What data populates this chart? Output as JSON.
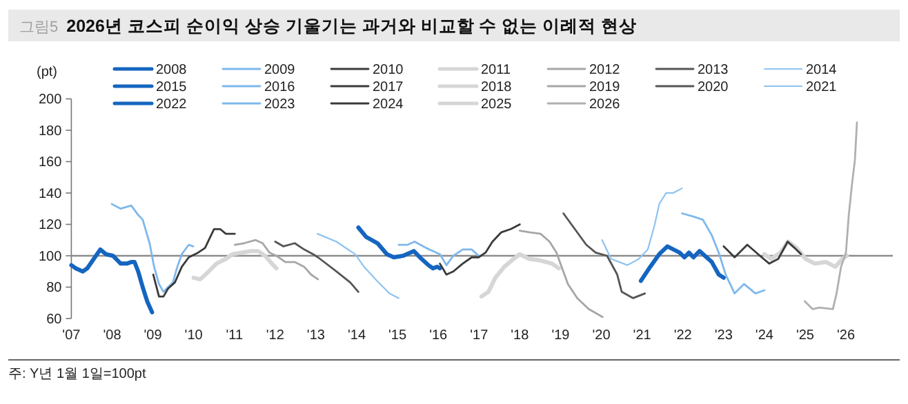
{
  "chart_data": {
    "type": "line",
    "title": "2026년 코스피 순이익 상승 기울기는 과거와 비교할 수 없는 이례적 현상",
    "ylabel": "(pt)",
    "annotations": [
      "그림5",
      "주: Y년 1월 1일=100pt"
    ],
    "xlim": [
      2007,
      2027.15
    ],
    "ylim": [
      60,
      200
    ],
    "xticks": [
      {
        "value": 2007,
        "label": "'07"
      },
      {
        "value": 2008,
        "label": "'08"
      },
      {
        "value": 2009,
        "label": "'09"
      },
      {
        "value": 2010,
        "label": "'10"
      },
      {
        "value": 2011,
        "label": "'11"
      },
      {
        "value": 2012,
        "label": "'12"
      },
      {
        "value": 2013,
        "label": "'13"
      },
      {
        "value": 2014,
        "label": "'14"
      },
      {
        "value": 2015,
        "label": "'15"
      },
      {
        "value": 2016,
        "label": "'16"
      },
      {
        "value": 2017,
        "label": "'17"
      },
      {
        "value": 2018,
        "label": "'18"
      },
      {
        "value": 2019,
        "label": "'19"
      },
      {
        "value": 2020,
        "label": "'20"
      },
      {
        "value": 2021,
        "label": "'21"
      },
      {
        "value": 2022,
        "label": "'22"
      },
      {
        "value": 2023,
        "label": "'23"
      },
      {
        "value": 2024,
        "label": "'24"
      },
      {
        "value": 2025,
        "label": "'25"
      },
      {
        "value": 2026,
        "label": "'26"
      }
    ],
    "yticks": [
      60,
      80,
      100,
      120,
      140,
      160,
      180,
      200
    ],
    "grid": false,
    "legend": "top",
    "line_style": "solid",
    "ref_lines": [
      {
        "axis": "y",
        "value": 100,
        "color": "#8c8c8c"
      }
    ],
    "series": [
      {
        "name": "2008",
        "color": "#1565c0",
        "x": [
          2007.0,
          2007.11,
          2007.28,
          2007.39,
          2007.71,
          2007.85,
          2008.02,
          2008.21,
          2008.36,
          2008.47,
          2008.55,
          2008.64,
          2008.75,
          2008.86,
          2008.98
        ],
        "values": [
          94,
          92,
          90,
          92,
          104,
          101,
          100,
          95,
          95,
          96,
          96,
          90,
          80,
          71,
          64
        ]
      },
      {
        "name": "2009",
        "color": "#7fb8ec",
        "x": [
          2007.99,
          2008.21,
          2008.47,
          2008.64,
          2008.75,
          2008.92,
          2009.03,
          2009.15,
          2009.26,
          2009.37,
          2009.49,
          2009.6,
          2009.71,
          2009.88,
          2009.99
        ],
        "values": [
          133,
          130,
          132,
          126,
          123,
          108,
          93,
          82,
          77,
          80,
          83,
          93,
          101,
          107,
          106
        ]
      },
      {
        "name": "2010",
        "color": "#3a3a3a",
        "x": [
          2009.01,
          2009.15,
          2009.26,
          2009.37,
          2009.54,
          2009.71,
          2009.88,
          2010.11,
          2010.28,
          2010.39,
          2010.5,
          2010.65,
          2010.79,
          2011.01
        ],
        "values": [
          88,
          74,
          74,
          79,
          83,
          93,
          99,
          102,
          105,
          111,
          117,
          117,
          114,
          114
        ]
      },
      {
        "name": "2011",
        "color": "#d6d6d6",
        "x": [
          2010.0,
          2010.16,
          2010.33,
          2010.56,
          2010.79,
          2010.95,
          2011.18,
          2011.41,
          2011.58,
          2011.75,
          2011.92,
          2012.03
        ],
        "values": [
          86,
          85,
          89,
          95,
          98,
          101,
          102,
          103,
          103,
          100,
          95,
          92
        ]
      },
      {
        "name": "2012",
        "color": "#a6a6a6",
        "x": [
          2011.01,
          2011.24,
          2011.52,
          2011.69,
          2011.86,
          2012.03,
          2012.25,
          2012.48,
          2012.71,
          2012.88,
          2013.05
        ],
        "values": [
          107,
          108,
          110,
          108,
          102,
          100,
          96,
          96,
          93,
          88,
          85
        ]
      },
      {
        "name": "2013",
        "color": "#555555",
        "x": [
          2012.0,
          2012.2,
          2012.48,
          2012.71,
          2012.93,
          2013.05,
          2013.5,
          2013.84,
          2014.04
        ],
        "values": [
          109,
          106,
          108,
          104,
          101,
          99,
          90,
          83,
          77
        ]
      },
      {
        "name": "2014",
        "color": "#8ec3f0",
        "x": [
          2013.04,
          2013.5,
          2013.96,
          2014.18,
          2014.46,
          2014.8,
          2015.03
        ],
        "values": [
          114,
          109,
          101,
          93,
          85,
          76,
          73
        ]
      },
      {
        "name": "2015",
        "color": "#1565c0",
        "x": [
          2014.04,
          2014.23,
          2014.51,
          2014.74,
          2014.91,
          2015.14,
          2015.4,
          2015.59,
          2015.76,
          2015.87,
          2015.98,
          2016.04
        ],
        "values": [
          118,
          112,
          108,
          101,
          99,
          100,
          103,
          98,
          94,
          92,
          93,
          92
        ]
      },
      {
        "name": "2016",
        "color": "#7fb8ec",
        "x": [
          2015.03,
          2015.25,
          2015.42,
          2015.7,
          2016.04,
          2016.2,
          2016.37,
          2016.6,
          2016.82,
          2016.99
        ],
        "values": [
          107,
          107,
          109,
          105,
          101,
          94,
          100,
          104,
          104,
          100
        ]
      },
      {
        "name": "2017",
        "color": "#3a3a3a",
        "x": [
          2016.04,
          2016.2,
          2016.37,
          2016.6,
          2016.82,
          2016.99,
          2017.16,
          2017.33,
          2017.55,
          2017.78,
          2018.0
        ],
        "values": [
          95,
          88,
          90,
          95,
          99,
          99,
          102,
          109,
          115,
          117,
          120
        ]
      },
      {
        "name": "2018",
        "color": "#d6d6d6",
        "x": [
          2017.06,
          2017.23,
          2017.4,
          2017.62,
          2017.85,
          2018.0,
          2018.23,
          2018.51,
          2018.79,
          2018.96
        ],
        "values": [
          74,
          77,
          86,
          93,
          98,
          101,
          98,
          97,
          95,
          92
        ]
      },
      {
        "name": "2019",
        "color": "#a6a6a6",
        "x": [
          2018.0,
          2018.23,
          2018.51,
          2018.73,
          2018.9,
          2019.04,
          2019.18,
          2019.41,
          2019.69,
          2020.03
        ],
        "values": [
          116,
          115,
          114,
          109,
          102,
          92,
          82,
          73,
          66,
          61
        ]
      },
      {
        "name": "2020",
        "color": "#555555",
        "x": [
          2019.07,
          2019.35,
          2019.63,
          2019.86,
          2020.14,
          2020.39,
          2020.5,
          2020.78,
          2021.07
        ],
        "values": [
          127,
          117,
          107,
          102,
          100,
          88,
          77,
          73,
          76
        ]
      },
      {
        "name": "2021",
        "color": "#8ec3f0",
        "x": [
          2020.02,
          2020.24,
          2020.64,
          2020.92,
          2021.14,
          2021.31,
          2021.42,
          2021.59,
          2021.76,
          2021.98
        ],
        "values": [
          110,
          98,
          94,
          98,
          104,
          120,
          133,
          140,
          140,
          143
        ]
      },
      {
        "name": "2022",
        "color": "#1565c0",
        "x": [
          2020.97,
          2021.2,
          2021.42,
          2021.62,
          2021.92,
          2022.04,
          2022.15,
          2022.26,
          2022.41,
          2022.54,
          2022.71,
          2022.88,
          2023.0
        ],
        "values": [
          84,
          93,
          101,
          106,
          102,
          99,
          102,
          99,
          103,
          100,
          96,
          88,
          86
        ]
      },
      {
        "name": "2023",
        "color": "#7fb8ec",
        "x": [
          2021.98,
          2022.26,
          2022.49,
          2022.71,
          2022.88,
          2023.05,
          2023.27,
          2023.5,
          2023.78,
          2024.0
        ],
        "values": [
          127,
          125,
          123,
          113,
          102,
          88,
          76,
          82,
          76,
          78
        ]
      },
      {
        "name": "2024",
        "color": "#3a3a3a",
        "x": [
          2023.0,
          2023.27,
          2023.58,
          2023.89,
          2024.12,
          2024.34,
          2024.57,
          2024.74,
          2024.9
        ],
        "values": [
          106,
          99,
          107,
          100,
          95,
          98,
          109,
          105,
          101
        ]
      },
      {
        "name": "2025",
        "color": "#d6d6d6",
        "x": [
          2024.0,
          2024.17,
          2024.39,
          2024.58,
          2024.79,
          2025.01,
          2025.24,
          2025.51,
          2025.74,
          2025.91,
          2026.02
        ],
        "values": [
          101,
          98,
          102,
          109,
          105,
          98,
          95,
          96,
          93,
          98,
          100
        ]
      },
      {
        "name": "2026",
        "color": "#b0b0b0",
        "x": [
          2024.99,
          2025.18,
          2025.35,
          2025.68,
          2025.77,
          2025.88,
          2026.0,
          2026.07,
          2026.15,
          2026.22,
          2026.27
        ],
        "values": [
          71,
          66,
          67,
          66,
          76,
          93,
          102,
          126,
          146,
          161,
          185
        ]
      }
    ]
  }
}
